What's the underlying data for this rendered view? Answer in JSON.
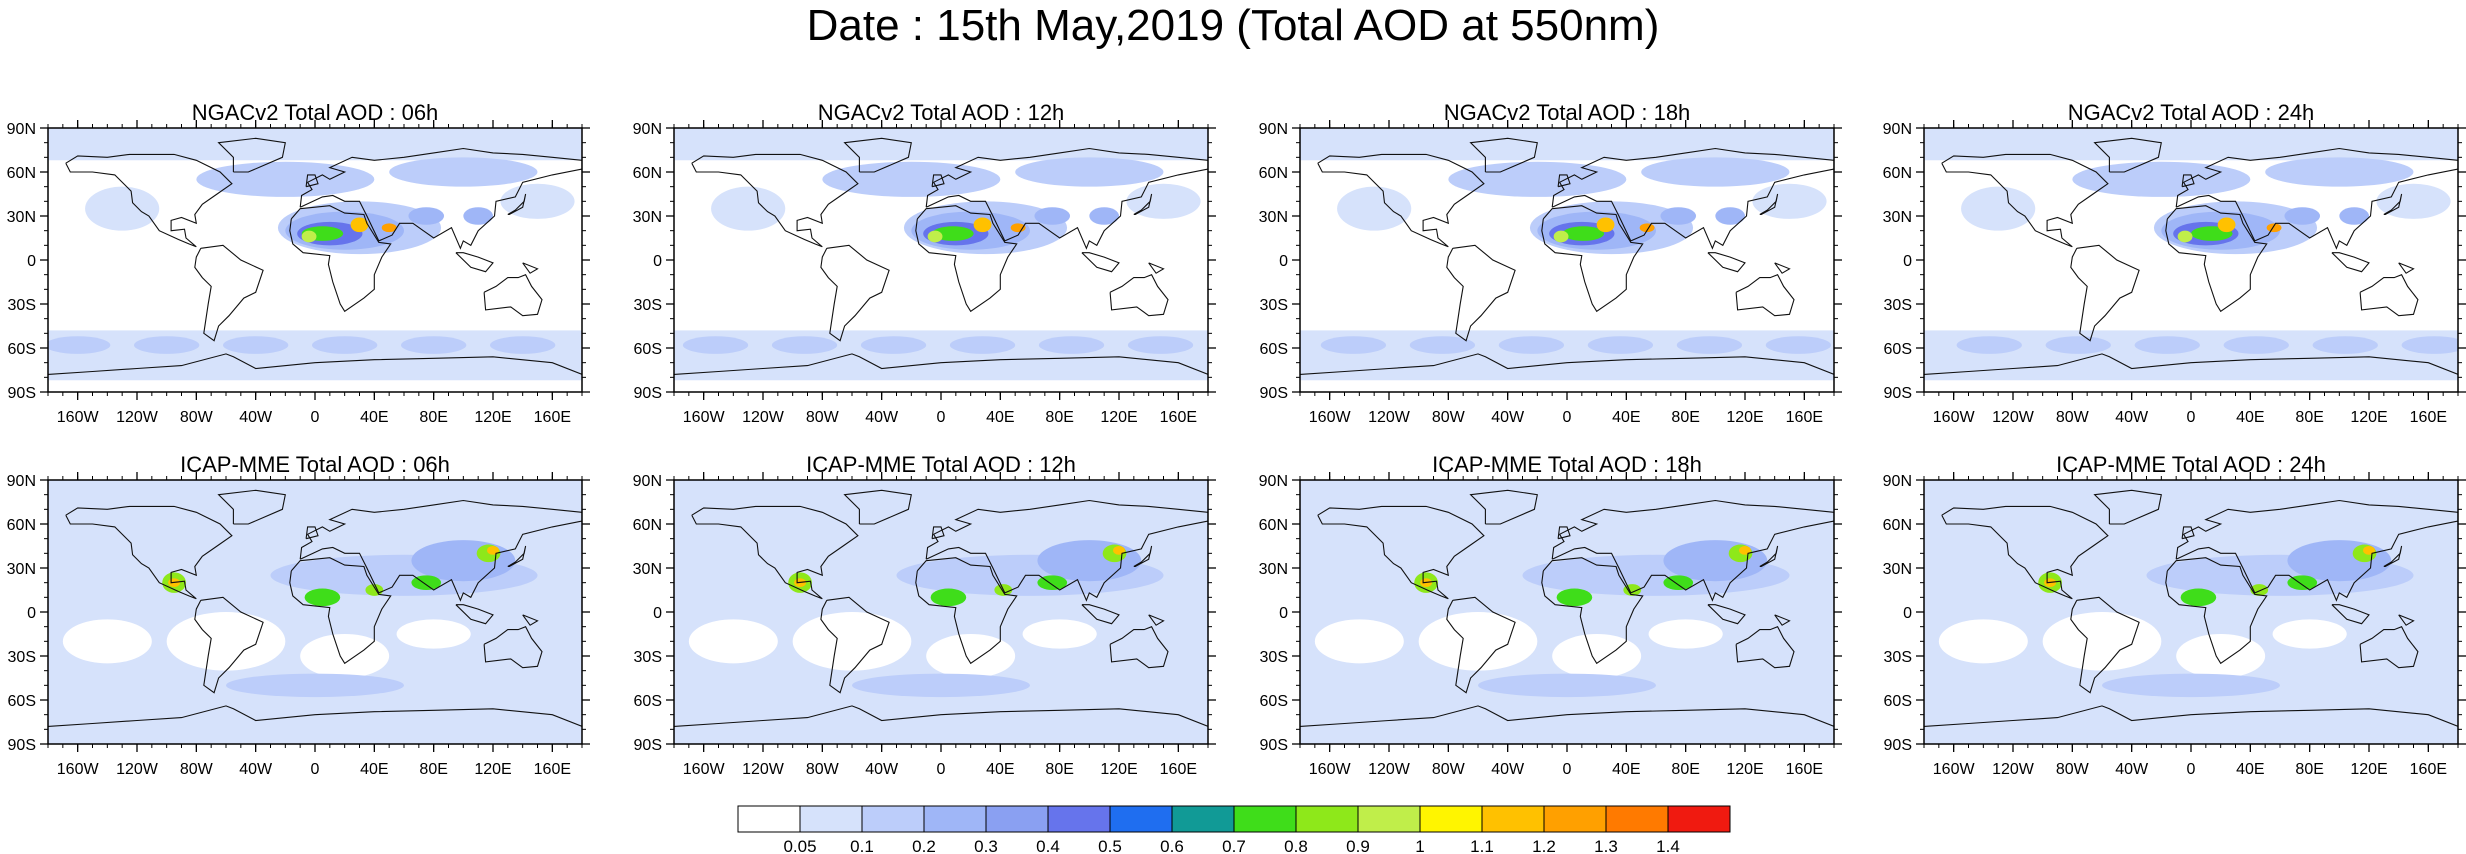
{
  "title": "Date : 15th May,2019 (Total AOD at 550nm)",
  "lat_labels": [
    "90N",
    "60N",
    "30N",
    "0",
    "30S",
    "60S",
    "90S"
  ],
  "lon_labels": [
    "160W",
    "120W",
    "80W",
    "40W",
    "0",
    "40E",
    "80E",
    "120E",
    "160E"
  ],
  "panels": [
    {
      "title": "NGACv2 Total AOD : 06h",
      "model": "NGACv2",
      "hour": "06h"
    },
    {
      "title": "NGACv2 Total AOD : 12h",
      "model": "NGACv2",
      "hour": "12h"
    },
    {
      "title": "NGACv2 Total AOD : 18h",
      "model": "NGACv2",
      "hour": "18h"
    },
    {
      "title": "NGACv2 Total AOD : 24h",
      "model": "NGACv2",
      "hour": "24h"
    },
    {
      "title": "ICAP-MME Total AOD : 06h",
      "model": "ICAP-MME",
      "hour": "06h"
    },
    {
      "title": "ICAP-MME Total AOD : 12h",
      "model": "ICAP-MME",
      "hour": "12h"
    },
    {
      "title": "ICAP-MME Total AOD : 18h",
      "model": "ICAP-MME",
      "hour": "18h"
    },
    {
      "title": "ICAP-MME Total AOD : 24h",
      "model": "ICAP-MME",
      "hour": "24h"
    }
  ],
  "colorbar": {
    "labels": [
      "0.05",
      "0.1",
      "0.2",
      "0.3",
      "0.4",
      "0.5",
      "0.6",
      "0.7",
      "0.8",
      "0.9",
      "1",
      "1.1",
      "1.2",
      "1.3",
      "1.4"
    ],
    "colors": [
      "#ffffff",
      "#d6e2fb",
      "#bccdfa",
      "#9fb6f7",
      "#8aa0f2",
      "#6674ec",
      "#1f6ef0",
      "#119a96",
      "#3fdd1a",
      "#8ee81a",
      "#c0ee4a",
      "#fff500",
      "#ffc100",
      "#ffa000",
      "#ff7a00",
      "#f01a10"
    ]
  }
}
